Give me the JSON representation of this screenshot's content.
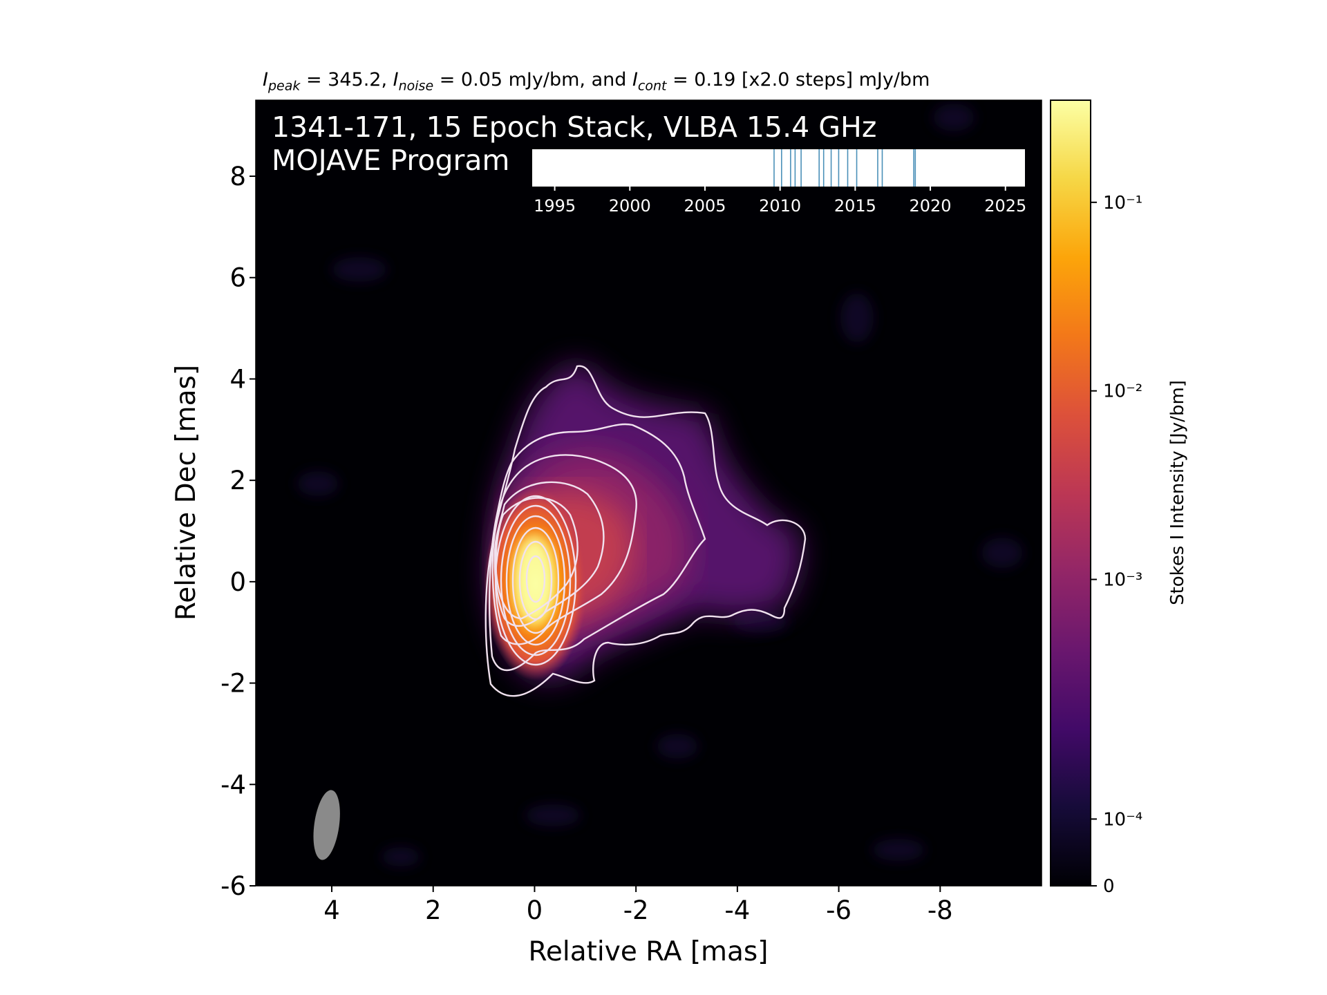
{
  "header": {
    "peak_sym": "I",
    "peak_sub": "peak",
    "peak_val": " = 345.2, ",
    "noise_sym": "I",
    "noise_sub": "noise",
    "noise_val": " = 0.05 mJy/bm, and ",
    "cont_sym": "I",
    "cont_sub": "cont",
    "cont_val": " = 0.19 [x2.0 steps] mJy/bm"
  },
  "overlay": {
    "line1": "1341-171, 15 Epoch Stack, VLBA 15.4 GHz",
    "line2": "MOJAVE Program"
  },
  "chart_data": {
    "type": "heatmap",
    "xlabel": "Relative RA [mas]",
    "ylabel": "Relative Dec [mas]",
    "xlim": [
      5.5,
      -10
    ],
    "ylim": [
      -6,
      9.5
    ],
    "x_ticks": [
      "4",
      "2",
      "0",
      "-2",
      "-4",
      "-6",
      "-8"
    ],
    "x_tick_values": [
      4,
      2,
      0,
      -2,
      -4,
      -6,
      -8
    ],
    "y_ticks": [
      "-6",
      "-4",
      "-2",
      "0",
      "2",
      "4",
      "6",
      "8"
    ],
    "y_tick_values": [
      -6,
      -4,
      -2,
      0,
      2,
      4,
      6,
      8
    ],
    "beam": {
      "x": 4.1,
      "y": -4.8
    },
    "colorbar": {
      "label": "Stokes I Intensity [Jy/bm]",
      "ticks": [
        {
          "label": "0",
          "frac": 0.0
        },
        {
          "label": "10⁻⁴",
          "frac": 0.085
        },
        {
          "label": "10⁻³",
          "frac": 0.39
        },
        {
          "label": "10⁻²",
          "frac": 0.63
        },
        {
          "label": "10⁻¹",
          "frac": 0.87
        }
      ],
      "colormap": "inferno"
    },
    "epoch_timeline": {
      "xlim": [
        1993.5,
        2026.3
      ],
      "ticks": [
        "1995",
        "2000",
        "2005",
        "2010",
        "2015",
        "2020",
        "2025"
      ],
      "tick_values": [
        1995,
        2000,
        2005,
        2010,
        2015,
        2020,
        2025
      ],
      "epochs": [
        2009.6,
        2010.1,
        2010.7,
        2011.0,
        2011.4,
        2012.6,
        2012.9,
        2013.4,
        2013.9,
        2014.5,
        2015.1,
        2016.5,
        2016.8,
        2018.9,
        2019.0
      ]
    },
    "contour_levels_mJy": [
      0.19,
      0.38,
      0.76,
      1.52,
      3.04,
      6.08,
      12.16,
      24.32,
      48.64,
      97.28,
      194.56
    ]
  }
}
